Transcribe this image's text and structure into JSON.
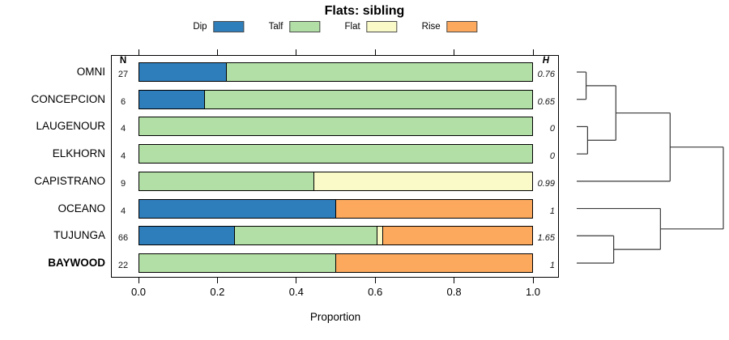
{
  "title": "Flats: sibling",
  "columns": {
    "n": "N",
    "h": "H"
  },
  "chart_data": {
    "type": "bar",
    "stacked": true,
    "orientation": "horizontal",
    "title": "Flats: sibling",
    "xlabel": "Proportion",
    "xlim": [
      0,
      1
    ],
    "xticks": [
      "0.0",
      "0.2",
      "0.4",
      "0.6",
      "0.8",
      "1.0"
    ],
    "grid": false,
    "legend_position": "top",
    "categories": [
      "OMNI",
      "CONCEPCION",
      "LAUGENOUR",
      "ELKHORN",
      "CAPISTRANO",
      "OCEANO",
      "TUJUNGA",
      "BAYWOOD"
    ],
    "bold_categories": [
      "BAYWOOD"
    ],
    "N": [
      27,
      6,
      4,
      4,
      9,
      4,
      66,
      22
    ],
    "H": [
      "0.76",
      "0.65",
      "0",
      "0",
      "0.99",
      "1",
      "1.65",
      "1"
    ],
    "series": [
      {
        "name": "Dip",
        "color": "#2e7ebc",
        "values": [
          0.2222,
          0.1667,
          0,
          0,
          0,
          0.5,
          0.2424,
          0
        ]
      },
      {
        "name": "Talf",
        "color": "#b2dfa5",
        "values": [
          0.7778,
          0.8333,
          1,
          1,
          0.4444,
          0,
          0.3636,
          0.5
        ]
      },
      {
        "name": "Flat",
        "color": "#fafac8",
        "values": [
          0,
          0,
          0,
          0,
          0.5556,
          0,
          0.0152,
          0
        ]
      },
      {
        "name": "Rise",
        "color": "#fca95e",
        "values": [
          0,
          0,
          0,
          0,
          0,
          0.5,
          0.3788,
          0.5
        ]
      }
    ],
    "dendrogram": {
      "height": 1,
      "children": [
        {
          "height": 0.637,
          "children": [
            {
              "height": 0.267,
              "children": [
                {
                  "height": 0.064,
                  "children": [
                    {
                      "leaf": "OMNI"
                    },
                    {
                      "leaf": "CONCEPCION"
                    }
                  ]
                },
                {
                  "height": 0.074,
                  "children": [
                    {
                      "leaf": "LAUGENOUR"
                    },
                    {
                      "leaf": "ELKHORN"
                    }
                  ]
                }
              ]
            },
            {
              "leaf": "CAPISTRANO"
            }
          ]
        },
        {
          "height": 0.571,
          "children": [
            {
              "leaf": "OCEANO"
            },
            {
              "height": 0.252,
              "children": [
                {
                  "leaf": "TUJUNGA"
                },
                {
                  "leaf": "BAYWOOD"
                }
              ]
            }
          ]
        }
      ]
    }
  }
}
